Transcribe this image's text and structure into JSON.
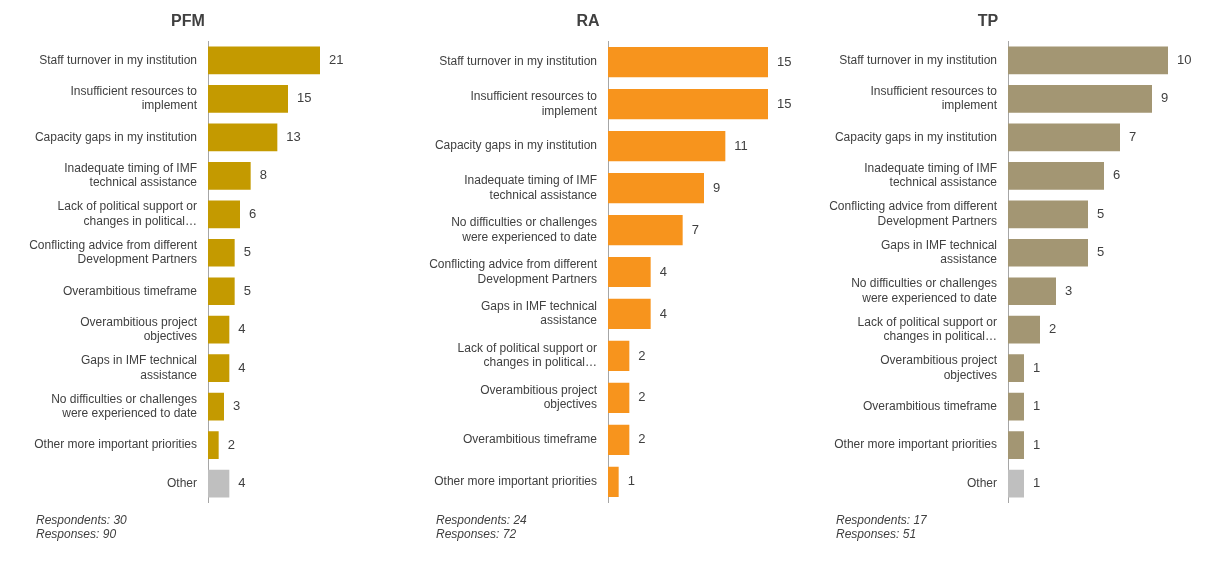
{
  "chart_data": [
    {
      "type": "bar",
      "orientation": "horizontal",
      "title": "PFM",
      "categories": [
        "Staff turnover in my institution",
        "Insufficient resources to implement",
        "Capacity gaps in my institution",
        "Inadequate timing of IMF technical assistance",
        "Lack of political support or changes in political…",
        "Conflicting advice from different Development Partners",
        "Overambitious timeframe",
        "Overambitious project objectives",
        "Gaps in IMF technical assistance",
        "No difficulties or challenges were experienced to date",
        "Other more important priorities",
        "Other"
      ],
      "values": [
        21,
        15,
        13,
        8,
        6,
        5,
        5,
        4,
        4,
        3,
        2,
        4
      ],
      "colors": [
        "#c49a00",
        "#c49a00",
        "#c49a00",
        "#c49a00",
        "#c49a00",
        "#c49a00",
        "#c49a00",
        "#c49a00",
        "#c49a00",
        "#c49a00",
        "#c49a00",
        "#bfbfbf"
      ],
      "data_labels": true,
      "legend": false,
      "tick_labels": "y",
      "annotations": [
        "Respondents: 30",
        "Responses: 90"
      ]
    },
    {
      "type": "bar",
      "orientation": "horizontal",
      "title": "RA",
      "categories": [
        "Staff turnover in my institution",
        "Insufficient resources to implement",
        "Capacity gaps in my institution",
        "Inadequate timing of IMF technical assistance",
        "No difficulties or challenges were experienced to date",
        "Conflicting advice from different Development Partners",
        "Gaps in IMF technical assistance",
        "Lack of political support or changes in political…",
        "Overambitious project objectives",
        "Overambitious timeframe",
        "Other more important priorities"
      ],
      "values": [
        15,
        15,
        11,
        9,
        7,
        4,
        4,
        2,
        2,
        2,
        1
      ],
      "color": "#f7941d",
      "data_labels": true,
      "legend": false,
      "tick_labels": "y",
      "annotations": [
        "Respondents: 24",
        "Responses: 72"
      ]
    },
    {
      "type": "bar",
      "orientation": "horizontal",
      "title": "TP",
      "categories": [
        "Staff turnover in my institution",
        "Insufficient resources to implement",
        "Capacity gaps in my institution",
        "Inadequate timing of IMF technical assistance",
        "Conflicting advice from different Development Partners",
        "Gaps in IMF technical assistance",
        "No difficulties or challenges were experienced to date",
        "Lack of political support or changes in political…",
        "Overambitious project objectives",
        "Overambitious timeframe",
        "Other more important priorities",
        "Other"
      ],
      "values": [
        10,
        9,
        7,
        6,
        5,
        5,
        3,
        2,
        1,
        1,
        1,
        1
      ],
      "colors": [
        "#a39673",
        "#a39673",
        "#a39673",
        "#a39673",
        "#a39673",
        "#a39673",
        "#a39673",
        "#a39673",
        "#a39673",
        "#a39673",
        "#a39673",
        "#bfbfbf"
      ],
      "data_labels": true,
      "legend": false,
      "tick_labels": "y",
      "annotations": [
        "Respondents: 17",
        "Responses: 51"
      ]
    }
  ]
}
